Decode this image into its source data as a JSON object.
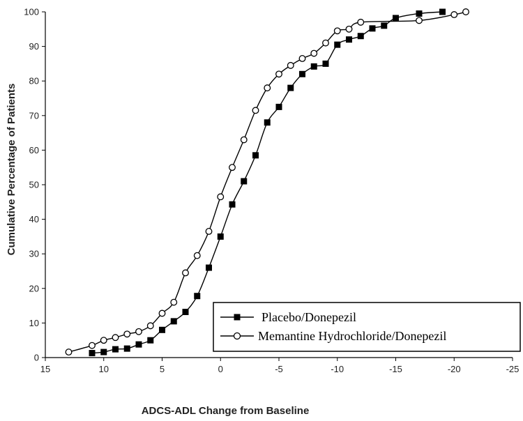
{
  "chart_data": {
    "type": "line",
    "title": "",
    "xlabel": "ADCS-ADL Change from Baseline",
    "ylabel": "Cumulative Percentage of Patients",
    "xlim": [
      15,
      -25
    ],
    "ylim": [
      0,
      100
    ],
    "x_reversed": true,
    "x_ticks": [
      15,
      10,
      5,
      0,
      -5,
      -10,
      -15,
      -20,
      -25
    ],
    "y_ticks": [
      0,
      10,
      20,
      30,
      40,
      50,
      60,
      70,
      80,
      90,
      100
    ],
    "grid": false,
    "legend_position": "bottom-right",
    "series": [
      {
        "name": "Placebo/Donepezil",
        "marker": "filled-square",
        "color": "#000000",
        "x": [
          11,
          10,
          9,
          8,
          7,
          6,
          5,
          4,
          3,
          2,
          1,
          0,
          -1,
          -2,
          -3,
          -4,
          -5,
          -6,
          -7,
          -8,
          -9,
          -10,
          -11,
          -12,
          -13,
          -14,
          -15,
          -17,
          -19
        ],
        "y": [
          1.3,
          1.6,
          2.4,
          2.6,
          3.8,
          5.0,
          8.0,
          10.5,
          13.2,
          17.8,
          26.0,
          35.0,
          44.3,
          51.0,
          58.5,
          68.0,
          72.5,
          78.0,
          82.0,
          84.2,
          85.0,
          90.5,
          92.0,
          93.0,
          95.2,
          96.0,
          98.2,
          99.5,
          100
        ]
      },
      {
        "name": "Memantine Hydrochloride/Donepezil",
        "marker": "open-circle",
        "color": "#000000",
        "x": [
          13,
          11,
          10,
          9,
          8,
          7,
          6,
          5,
          4,
          3,
          2,
          1,
          0,
          -1,
          -2,
          -3,
          -4,
          -5,
          -6,
          -7,
          -8,
          -9,
          -10,
          -11,
          -12,
          -17,
          -20,
          -21
        ],
        "y": [
          1.6,
          3.5,
          5.0,
          5.8,
          6.8,
          7.5,
          9.2,
          12.8,
          16.0,
          24.5,
          29.5,
          36.5,
          46.5,
          55.0,
          63.0,
          71.5,
          78.0,
          82.0,
          84.5,
          86.5,
          88.0,
          91.0,
          94.5,
          95.0,
          97.0,
          97.5,
          99.2,
          100
        ]
      }
    ]
  }
}
